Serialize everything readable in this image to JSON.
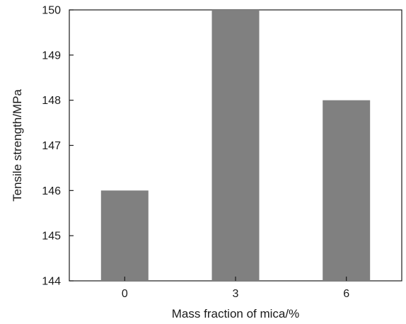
{
  "chart_data": {
    "type": "bar",
    "title": "",
    "xlabel": "Mass fraction of mica/%",
    "ylabel": "Tensile strength/MPa",
    "categories": [
      "0",
      "3",
      "6"
    ],
    "values": [
      146,
      150,
      148
    ],
    "ylim": [
      144,
      150
    ],
    "yticks": [
      144,
      145,
      146,
      147,
      148,
      149,
      150
    ],
    "grid": false,
    "legend": "none",
    "bar_color": "#808080"
  }
}
